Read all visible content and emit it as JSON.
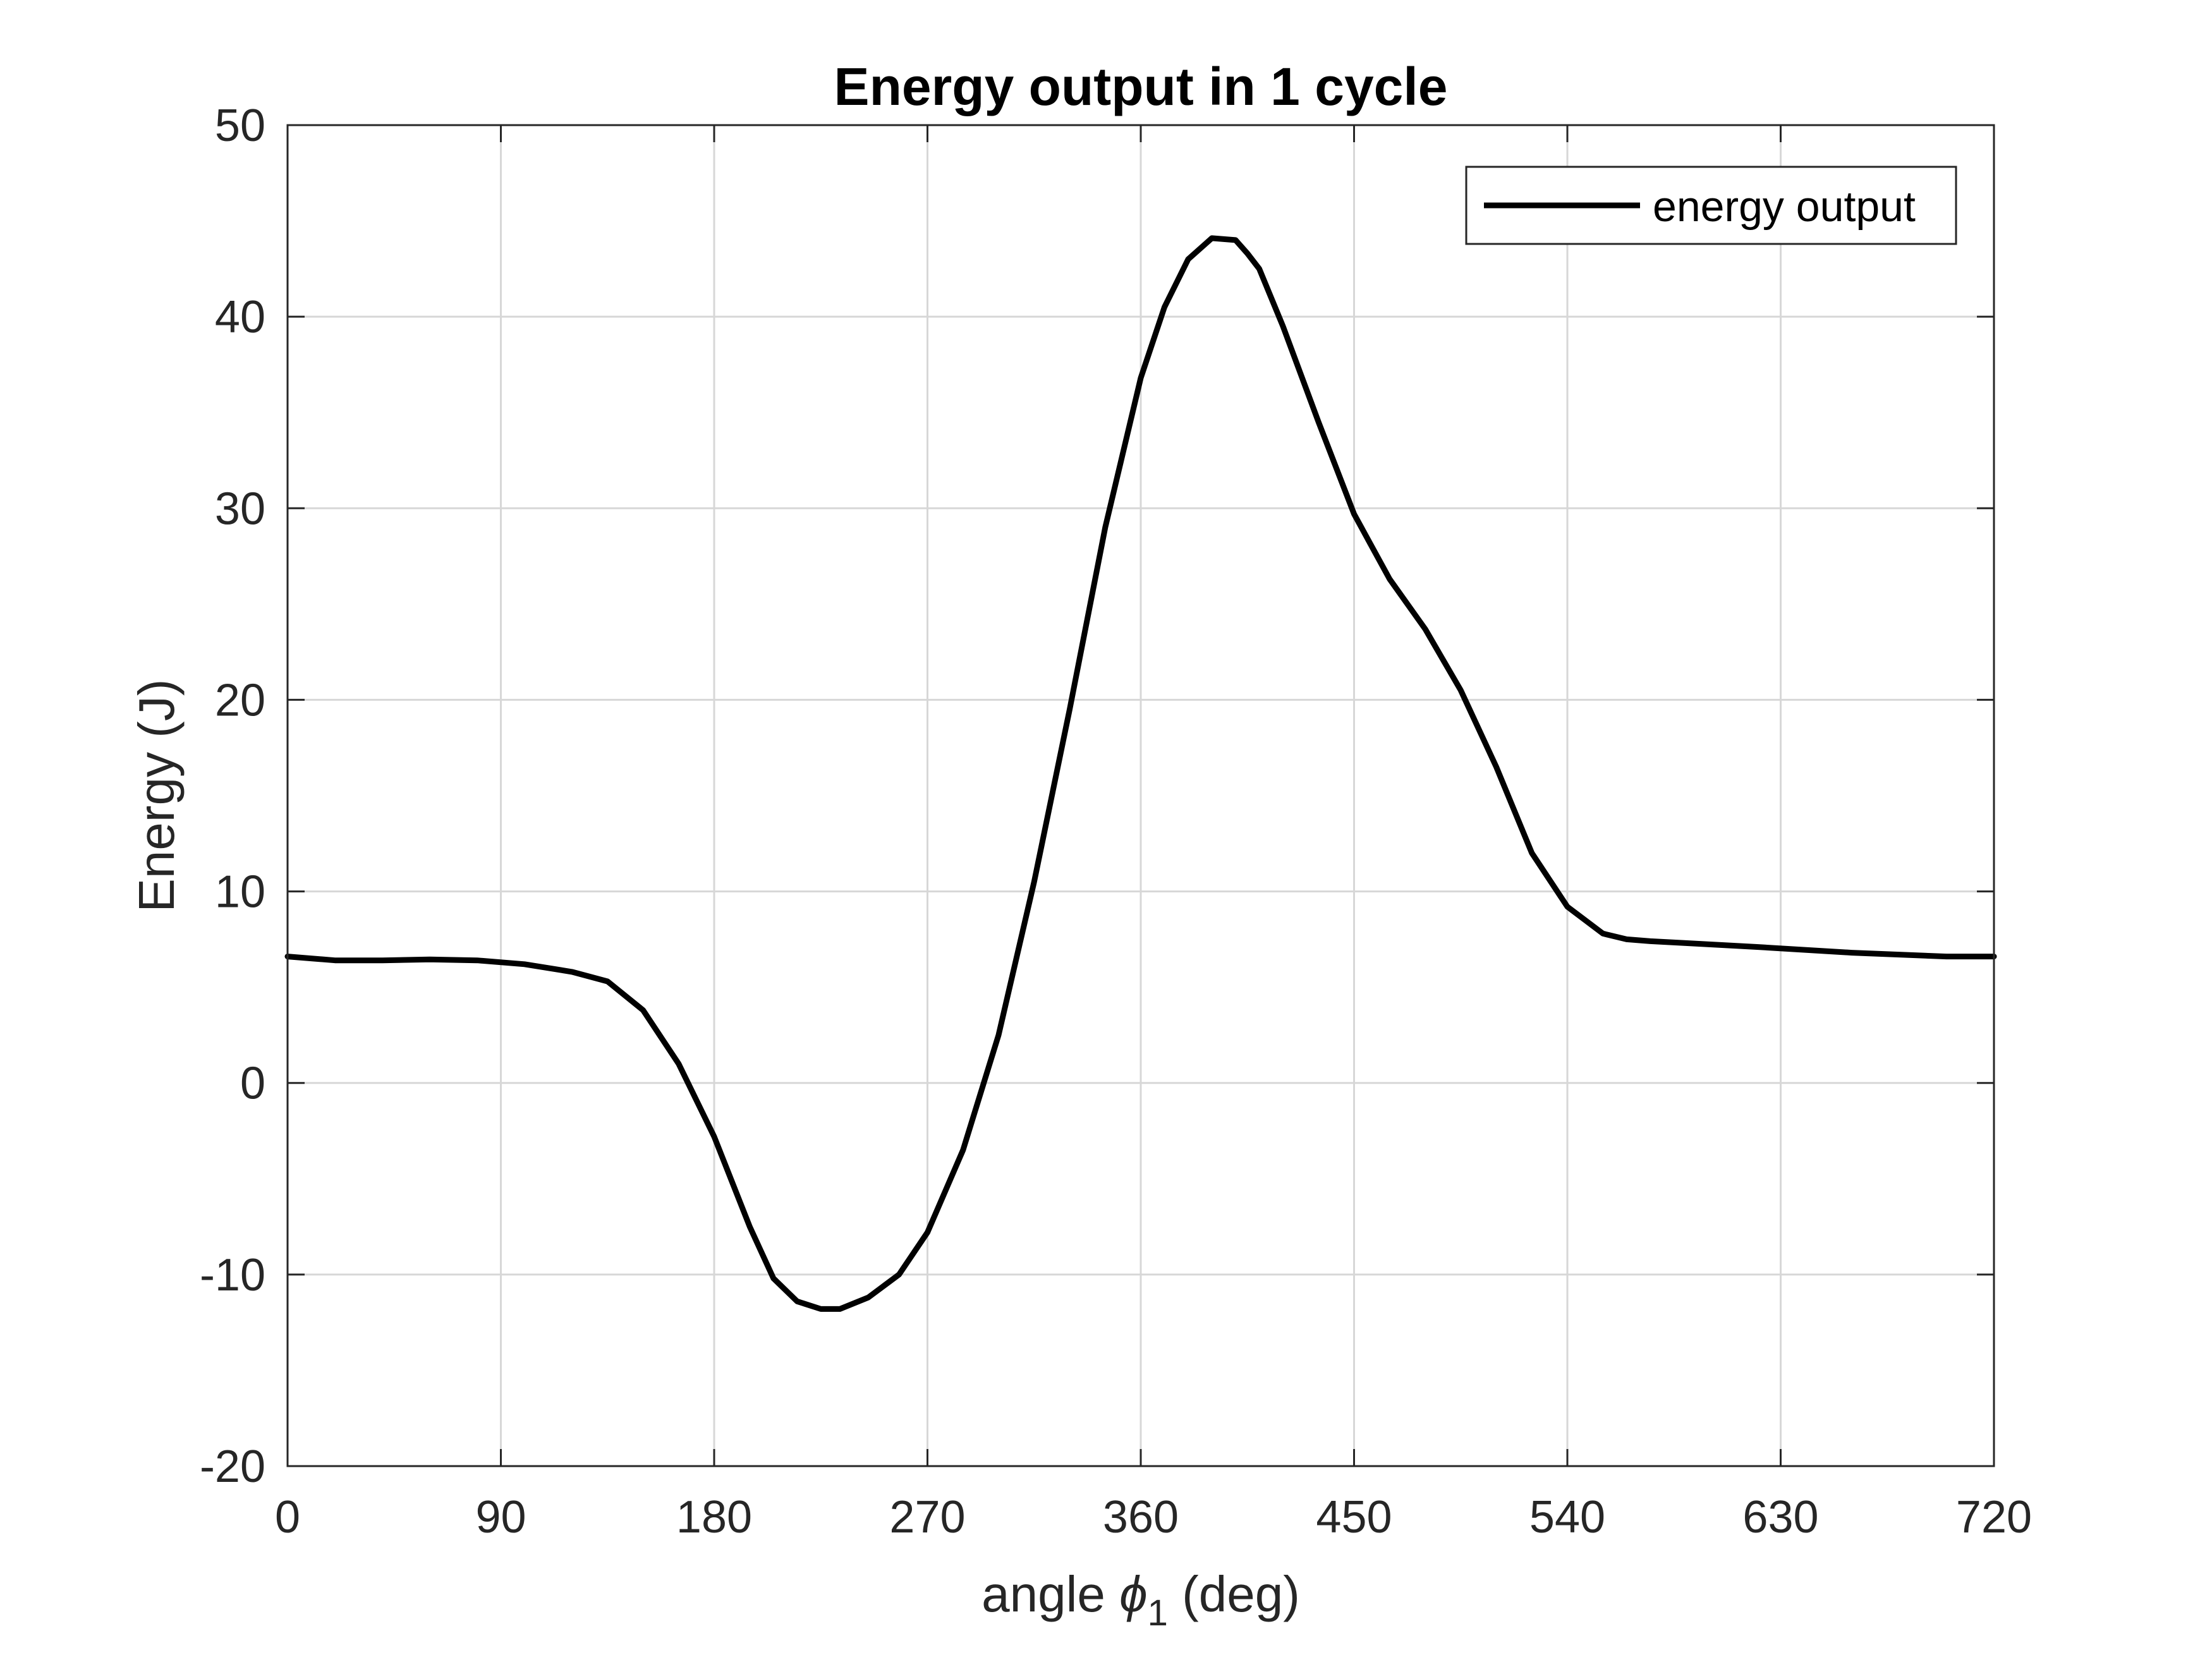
{
  "chart_data": {
    "type": "line",
    "title": "Energy output in 1 cycle",
    "xlabel": {
      "prefix": "angle ",
      "symbol": "ϕ",
      "subscript": "1",
      "suffix": " (deg)"
    },
    "ylabel": "Energy (J)",
    "xlim": [
      0,
      720
    ],
    "ylim": [
      -20,
      50
    ],
    "xticks": [
      0,
      90,
      180,
      270,
      360,
      450,
      540,
      630,
      720
    ],
    "yticks": [
      -20,
      -10,
      0,
      10,
      20,
      30,
      40,
      50
    ],
    "grid": true,
    "legend_position": "top-right",
    "series": [
      {
        "name": "energy output",
        "color": "#000000",
        "x": [
          0,
          20,
          40,
          60,
          80,
          100,
          120,
          135,
          150,
          165,
          180,
          195,
          205,
          215,
          225,
          233,
          245,
          258,
          270,
          285,
          300,
          315,
          330,
          345,
          360,
          370,
          380,
          390,
          400,
          405,
          410,
          420,
          435,
          450,
          465,
          480,
          495,
          510,
          525,
          540,
          555,
          565,
          575,
          590,
          620,
          660,
          700,
          720
        ],
        "y": [
          6.6,
          6.4,
          6.4,
          6.45,
          6.4,
          6.2,
          5.8,
          5.3,
          3.8,
          1.0,
          -2.8,
          -7.5,
          -10.2,
          -11.4,
          -11.8,
          -11.8,
          -11.2,
          -10.0,
          -7.8,
          -3.5,
          2.5,
          10.5,
          19.5,
          29.0,
          36.8,
          40.5,
          43.0,
          44.1,
          44.0,
          43.3,
          42.5,
          39.5,
          34.5,
          29.7,
          26.3,
          23.7,
          20.5,
          16.5,
          12.0,
          9.2,
          7.8,
          7.5,
          7.4,
          7.3,
          7.1,
          6.8,
          6.6,
          6.6
        ]
      }
    ]
  }
}
